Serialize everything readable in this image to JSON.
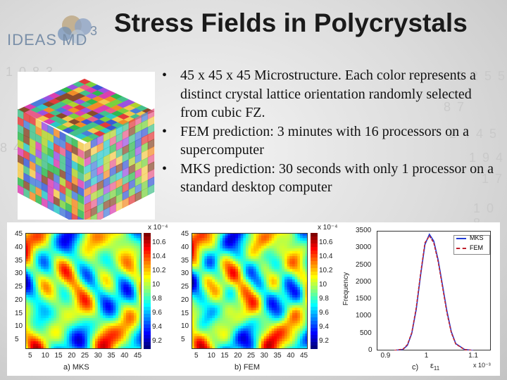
{
  "header": {
    "title": "Stress Fields in Polycrystals",
    "logo_text": "IDEAS MD",
    "logo_sup": "3"
  },
  "bullets": [
    "45 x 45 x 45 Microstructure. Each color represents a distinct crystal lattice orientation randomly selected from cubic FZ.",
    "FEM prediction: 3 minutes with 16 processors on a supercomputer",
    "MKS prediction: 30 seconds with only 1 processor on a standard desktop computer"
  ],
  "background_digits": [
    "1 0 8 3",
    "1 2 5 5",
    "8 7",
    "2 4 4 5",
    "1 9 4",
    "8 4 1",
    "1 7",
    "1 0 8"
  ],
  "panels": {
    "a": {
      "caption": "a) MKS",
      "y_ticks": [
        "45",
        "40",
        "35",
        "30",
        "25",
        "20",
        "15",
        "10",
        "5"
      ],
      "x_ticks": [
        "5",
        "10",
        "15",
        "20",
        "25",
        "30",
        "35",
        "40",
        "45"
      ],
      "colorbar_exponent": "x 10⁻⁴",
      "colorbar_ticks": [
        "10.6",
        "10.4",
        "10.2",
        "10",
        "9.8",
        "9.6",
        "9.4",
        "9.2"
      ]
    },
    "b": {
      "caption": "b) FEM",
      "y_ticks": [
        "45",
        "40",
        "35",
        "30",
        "25",
        "20",
        "15",
        "10",
        "5"
      ],
      "x_ticks": [
        "5",
        "10",
        "15",
        "20",
        "25",
        "30",
        "35",
        "40",
        "45"
      ],
      "colorbar_exponent": "x 10⁻⁴",
      "colorbar_ticks": [
        "10.6",
        "10.4",
        "10.2",
        "10",
        "9.8",
        "9.6",
        "9.4",
        "9.2"
      ]
    },
    "c": {
      "caption": "c)",
      "xlabel": "ε",
      "xlabel_sub": "11",
      "ylabel": "Frequency",
      "x_exponent": "x 10⁻³",
      "legend_mks": "MKS",
      "legend_fem": "FEM",
      "colors": {
        "mks": "#1f3bd6",
        "fem": "#c0212f"
      }
    }
  },
  "chart_data": {
    "type": "line",
    "title": "",
    "xlabel": "ε11 (x 10⁻³)",
    "ylabel": "Frequency",
    "xlim": [
      0.88,
      1.14
    ],
    "ylim": [
      0,
      3500
    ],
    "x_ticks": [
      "0.9",
      "1",
      "1.1"
    ],
    "y_ticks": [
      "0",
      "500",
      "1000",
      "1500",
      "2000",
      "2500",
      "3000",
      "3500"
    ],
    "x": [
      0.92,
      0.94,
      0.95,
      0.96,
      0.97,
      0.98,
      0.99,
      1.0,
      1.01,
      1.02,
      1.03,
      1.04,
      1.05,
      1.06,
      1.08,
      1.1
    ],
    "series": [
      {
        "name": "MKS",
        "values": [
          0,
          30,
          150,
          500,
          1200,
          2200,
          3100,
          3400,
          3200,
          2650,
          1900,
          1150,
          550,
          200,
          30,
          0
        ]
      },
      {
        "name": "FEM",
        "values": [
          0,
          40,
          170,
          520,
          1250,
          2250,
          3150,
          3350,
          3150,
          2600,
          1850,
          1100,
          520,
          190,
          25,
          0
        ]
      }
    ]
  }
}
